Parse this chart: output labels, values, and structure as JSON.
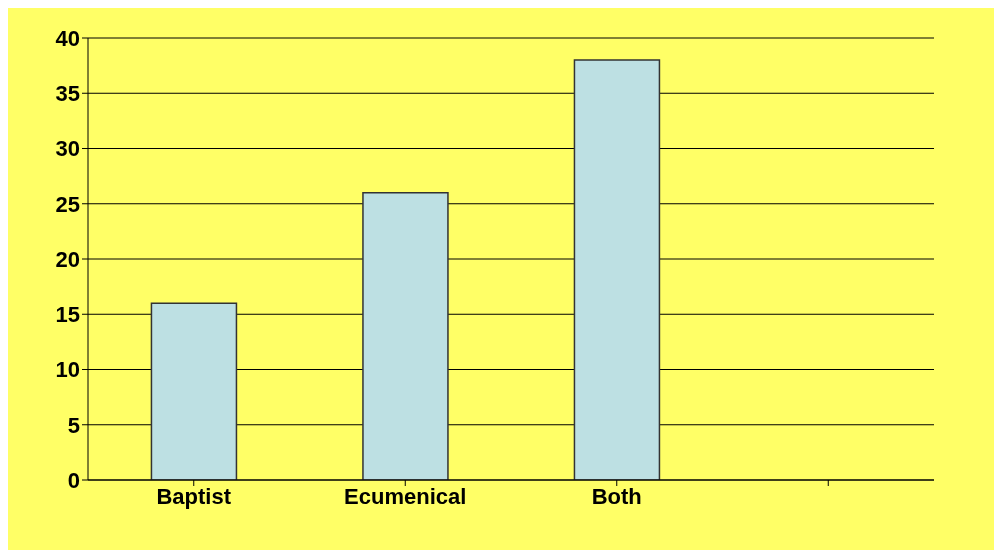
{
  "chart_data": {
    "type": "bar",
    "categories": [
      "Baptist",
      "Ecumenical",
      "Both",
      null
    ],
    "values": [
      16,
      26,
      38,
      null
    ],
    "color": "#bde0e3",
    "ylim": [
      0,
      40
    ],
    "yticks": [
      0,
      5,
      10,
      15,
      20,
      25,
      30,
      35,
      40
    ],
    "grid": "y"
  }
}
